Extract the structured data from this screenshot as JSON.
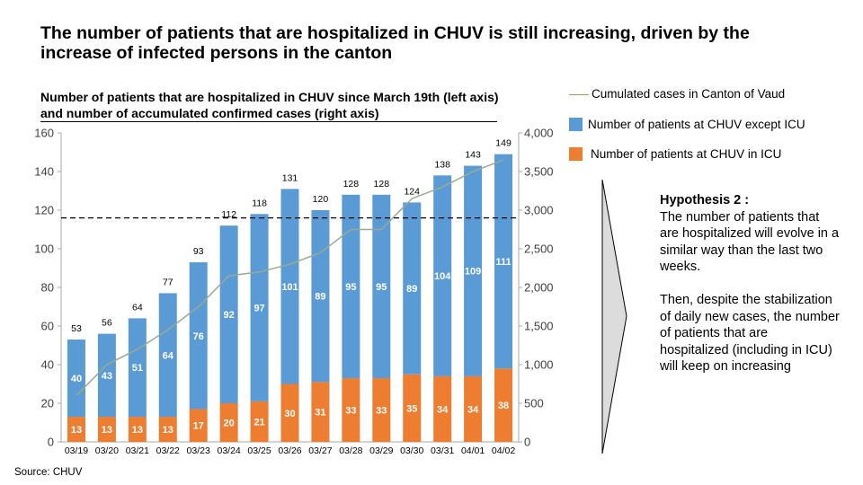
{
  "page": {
    "title": "The number of patients that are hospitalized in CHUV is still increasing, driven by the increase of infected persons in the canton",
    "source": "Source: CHUV"
  },
  "chart_data": {
    "type": "bar",
    "stacked": true,
    "title": "Number of patients that are hospitalized in CHUV since March 19th (left axis) and number of accumulated confirmed cases (right axis)",
    "categories": [
      "03/19",
      "03/20",
      "03/21",
      "03/22",
      "03/23",
      "03/24",
      "03/25",
      "03/26",
      "03/27",
      "03/28",
      "03/29",
      "03/30",
      "03/31",
      "04/01",
      "04/02"
    ],
    "series": [
      {
        "name": "Number of patients at CHUV in ICU",
        "color": "#ed7d31",
        "axis": "left",
        "values": [
          13,
          13,
          13,
          13,
          17,
          20,
          21,
          30,
          31,
          33,
          33,
          35,
          34,
          34,
          38
        ]
      },
      {
        "name": "Number of patients at CHUV except ICU",
        "color": "#5b9bd5",
        "axis": "left",
        "values": [
          40,
          43,
          51,
          64,
          76,
          92,
          97,
          101,
          89,
          95,
          95,
          89,
          104,
          109,
          111
        ]
      },
      {
        "name": "Cumulated cases in Canton of Vaud",
        "color": "#9aa98f",
        "type": "line",
        "axis": "right",
        "values": [
          600,
          1000,
          1200,
          1450,
          1750,
          2150,
          2200,
          2300,
          2450,
          2750,
          2750,
          3150,
          3300,
          3500,
          3650
        ]
      }
    ],
    "totals": [
      53,
      56,
      64,
      77,
      93,
      112,
      118,
      131,
      120,
      128,
      128,
      124,
      138,
      143,
      149
    ],
    "ylim_left": [
      0,
      160
    ],
    "yticks_left": [
      "0",
      "20",
      "40",
      "60",
      "80",
      "100",
      "120",
      "140",
      "160"
    ],
    "ylim_right": [
      0,
      4000
    ],
    "yticks_right": [
      "0",
      "500",
      "1,000",
      "1,500",
      "2,000",
      "2,500",
      "3,000",
      "3,500",
      "4,000"
    ],
    "reference_line_right": 2900,
    "legend": [
      {
        "label": "Cumulated cases in Canton of Vaud",
        "kind": "line",
        "color": "#7fae5a"
      },
      {
        "label": "Number of patients at CHUV except ICU",
        "kind": "box",
        "color": "#5b9bd5"
      },
      {
        "label": "Number of patients at CHUV in ICU",
        "kind": "box",
        "color": "#ed7d31"
      }
    ]
  },
  "hypothesis": {
    "title": "Hypothesis 2 :",
    "paragraph1": "The number of patients that are hospitalized will evolve in a similar way than the last two weeks.",
    "paragraph2": "Then, despite the stabilization of daily new cases, the number of patients that are hospitalized (including in ICU) will keep on increasing"
  }
}
